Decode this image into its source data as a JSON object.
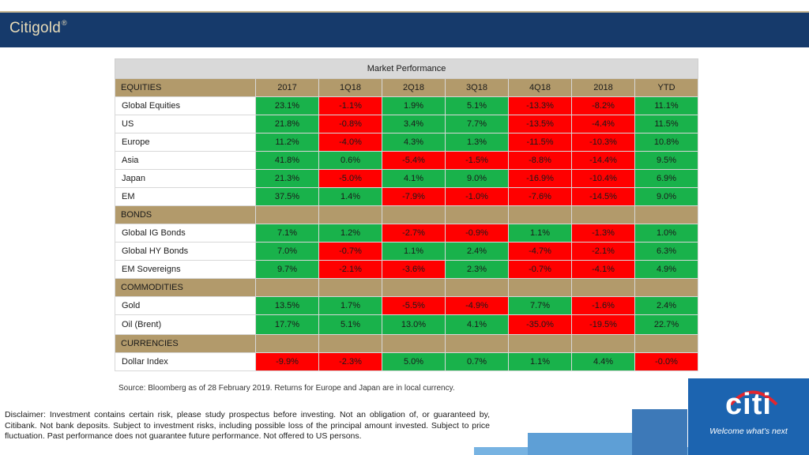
{
  "header": {
    "brand": "Citigold",
    "brand_mark": "®"
  },
  "table": {
    "title": "Market Performance",
    "columns": [
      "2017",
      "1Q18",
      "2Q18",
      "3Q18",
      "4Q18",
      "2018",
      "YTD"
    ],
    "sections": [
      {
        "name": "EQUITIES",
        "rows": [
          {
            "label": "Global Equities",
            "values": [
              "23.1%",
              "-1.1%",
              "1.9%",
              "5.1%",
              "-13.3%",
              "-8.2%",
              "11.1%"
            ]
          },
          {
            "label": "US",
            "values": [
              "21.8%",
              "-0.8%",
              "3.4%",
              "7.7%",
              "-13.5%",
              "-4.4%",
              "11.5%"
            ]
          },
          {
            "label": "Europe",
            "values": [
              "11.2%",
              "-4.0%",
              "4.3%",
              "1.3%",
              "-11.5%",
              "-10.3%",
              "10.8%"
            ]
          },
          {
            "label": "Asia",
            "values": [
              "41.8%",
              "0.6%",
              "-5.4%",
              "-1.5%",
              "-8.8%",
              "-14.4%",
              "9.5%"
            ]
          },
          {
            "label": "Japan",
            "values": [
              "21.3%",
              "-5.0%",
              "4.1%",
              "9.0%",
              "-16.9%",
              "-10.4%",
              "6.9%"
            ]
          },
          {
            "label": "EM",
            "values": [
              "37.5%",
              "1.4%",
              "-7.9%",
              "-1.0%",
              "-7.6%",
              "-14.5%",
              "9.0%"
            ]
          }
        ]
      },
      {
        "name": "BONDS",
        "rows": [
          {
            "label": "Global IG Bonds",
            "values": [
              "7.1%",
              "1.2%",
              "-2.7%",
              "-0.9%",
              "1.1%",
              "-1.3%",
              "1.0%"
            ]
          },
          {
            "label": "Global HY Bonds",
            "values": [
              "7.0%",
              "-0.7%",
              "1.1%",
              "2.4%",
              "-4.7%",
              "-2.1%",
              "6.3%"
            ]
          },
          {
            "label": "EM Sovereigns",
            "values": [
              "9.7%",
              "-2.1%",
              "-3.6%",
              "2.3%",
              "-0.7%",
              "-4.1%",
              "4.9%"
            ]
          }
        ]
      },
      {
        "name": "COMMODITIES",
        "rows": [
          {
            "label": "Gold",
            "values": [
              "13.5%",
              "1.7%",
              "-5.5%",
              "-4.9%",
              "7.7%",
              "-1.6%",
              "2.4%"
            ]
          },
          {
            "label": "Oil (Brent)",
            "values": [
              "17.7%",
              "5.1%",
              "13.0%",
              "4.1%",
              "-35.0%",
              "-19.5%",
              "22.7%"
            ]
          }
        ]
      },
      {
        "name": "CURRENCIES",
        "rows": [
          {
            "label": "Dollar Index",
            "values": [
              "-9.9%",
              "-2.3%",
              "5.0%",
              "0.7%",
              "1.1%",
              "4.4%",
              "-0.0%"
            ]
          }
        ]
      }
    ]
  },
  "colors": {
    "positive": "#19b24b",
    "negative": "#ff0000",
    "section": "#b29a6b",
    "header_bar": "#163a6b",
    "logo": "#1c64b0"
  },
  "source": "Source: Bloomberg as of 28 February 2019. Returns for Europe and Japan are in local currency.",
  "disclaimer": "Disclaimer: Investment contains certain risk, please study prospectus before investing. Not an obligation of, or guaranteed by, Citibank. Not bank deposits. Subject to investment risks, including possible loss of the principal amount invested. Subject to price fluctuation. Past performance does not guarantee future performance. Not offered to US persons.",
  "logo": {
    "word": "citi",
    "tagline": "Welcome what's next",
    "icon": "citi-arc-logo"
  }
}
